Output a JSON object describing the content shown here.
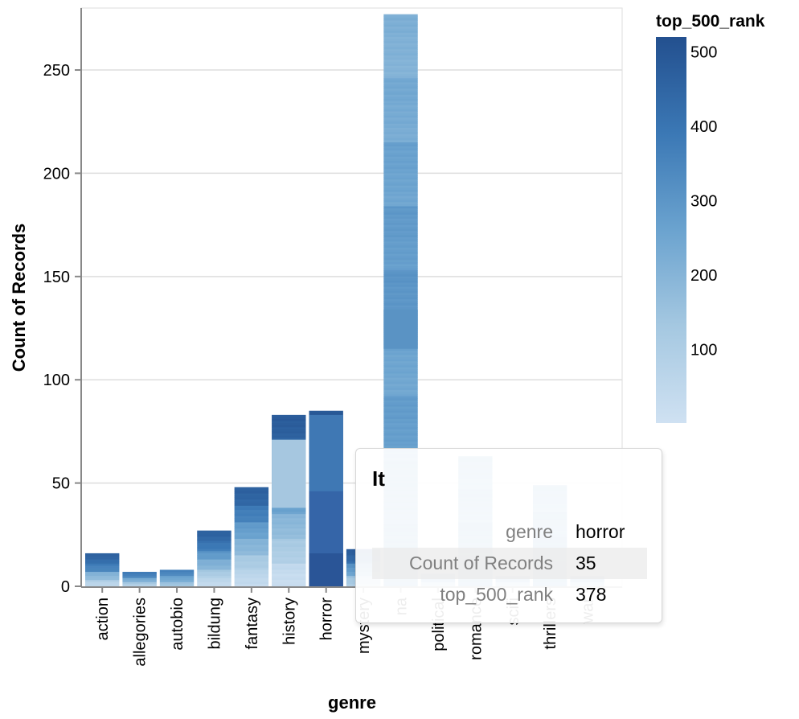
{
  "chart_data": {
    "type": "bar",
    "stacked": true,
    "title": "",
    "xlabel": "genre",
    "ylabel": "Count of Records",
    "ylim": [
      0,
      280
    ],
    "y_ticks": [
      0,
      50,
      100,
      150,
      200,
      250
    ],
    "grid": true,
    "categories": [
      "action",
      "allegories",
      "autobio",
      "bildung",
      "fantasy",
      "history",
      "horror",
      "mystery",
      "na",
      "political",
      "romance",
      "scifi",
      "thrillers",
      "war"
    ],
    "values": [
      16,
      7,
      8,
      27,
      48,
      83,
      85,
      18,
      277,
      6,
      63,
      5,
      49,
      5
    ],
    "color_field": "top_500_rank",
    "color_scheme": "blues",
    "color_range": [
      "#cfe1f2",
      "#23508f"
    ],
    "legend": {
      "title": "top_500_rank",
      "ticks": [
        500,
        400,
        300,
        200,
        100
      ],
      "domain": [
        1,
        520
      ],
      "placement": "top-right"
    },
    "highlighted_category": "horror"
  },
  "tooltip": {
    "title": "It",
    "rows": [
      {
        "key": "genre",
        "value": "horror"
      },
      {
        "key": "Count of Records",
        "value": "35"
      },
      {
        "key": "top_500_rank",
        "value": "378"
      }
    ]
  }
}
